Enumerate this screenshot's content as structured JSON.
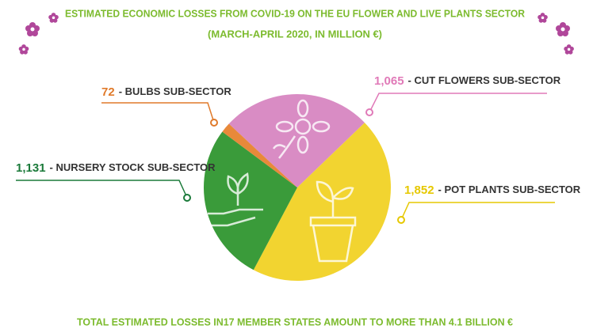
{
  "chart_data": {
    "type": "pie",
    "title": "ESTIMATED ECONOMIC LOSSES FROM COVID-19 ON THE EU FLOWER AND LIVE PLANTS SECTOR",
    "subtitle": "(MARCH-APRIL 2020, IN MILLION €)",
    "footer": "TOTAL ESTIMATED LOSSES IN17 MEMBER STATES AMOUNT TO MORE THAN 4.1 BILLION €",
    "categories": [
      "- CUT FLOWERS SUB-SECTOR",
      "- POT PLANTS SUB-SECTOR",
      "- NURSERY STOCK SUB-SECTOR",
      "- BULBS SUB-SECTOR"
    ],
    "values": [
      1065,
      1852,
      1131,
      72
    ],
    "value_labels": [
      "1,065",
      "1,852",
      "1,131",
      "72"
    ],
    "colors": [
      "#d98cc4",
      "#f2d430",
      "#3a9b3a",
      "#e8893a"
    ],
    "label_colors": [
      "#e07ab8",
      "#e6c800",
      "#1b7a3a",
      "#e07a2a"
    ]
  }
}
